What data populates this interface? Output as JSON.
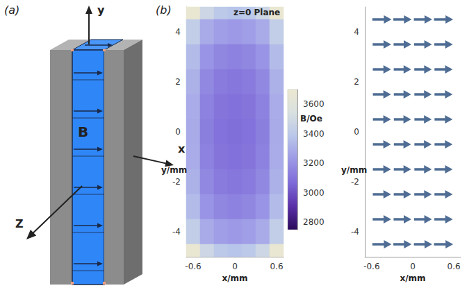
{
  "panel_labels": [
    "(a)",
    "(b)"
  ],
  "diagram": {
    "type": "diagram",
    "axis_labels": [
      "x",
      "y",
      "Z"
    ],
    "field_label": "B"
  },
  "chart_data": [
    {
      "type": "heatmap",
      "annotation": "z=0 Plane",
      "xlabel": "x/mm",
      "ylabel": "y/mm",
      "xlim": [
        -0.7,
        0.7
      ],
      "ylim": [
        -5,
        5
      ],
      "xticks": [
        -0.6,
        0,
        0.6
      ],
      "yticks": [
        -4,
        -2,
        0,
        2,
        4
      ],
      "x": [
        -0.6,
        -0.4,
        -0.2,
        0,
        0.2,
        0.4,
        0.6
      ],
      "y": [
        5,
        4,
        3,
        2,
        1,
        0,
        -1,
        -2,
        -3,
        -4,
        -5
      ],
      "values": [
        [
          3680,
          3480,
          3400,
          3380,
          3400,
          3480,
          3680
        ],
        [
          3430,
          3290,
          3245,
          3230,
          3245,
          3290,
          3430
        ],
        [
          3350,
          3210,
          3165,
          3150,
          3165,
          3210,
          3350
        ],
        [
          3310,
          3170,
          3125,
          3110,
          3125,
          3170,
          3310
        ],
        [
          3295,
          3150,
          3105,
          3090,
          3105,
          3150,
          3295
        ],
        [
          3290,
          3140,
          3095,
          3080,
          3095,
          3140,
          3290
        ],
        [
          3295,
          3150,
          3105,
          3090,
          3105,
          3150,
          3295
        ],
        [
          3310,
          3170,
          3125,
          3110,
          3125,
          3170,
          3310
        ],
        [
          3350,
          3210,
          3165,
          3150,
          3165,
          3210,
          3350
        ],
        [
          3430,
          3290,
          3245,
          3230,
          3245,
          3290,
          3430
        ],
        [
          3680,
          3480,
          3400,
          3380,
          3400,
          3480,
          3680
        ]
      ],
      "colorbar": {
        "title": "B/Oe",
        "range": [
          2750,
          3700
        ],
        "ticks": [
          2800,
          3000,
          3200,
          3400,
          3600
        ]
      },
      "grid": false
    },
    {
      "type": "quiver",
      "xlabel": "x/mm",
      "ylabel": "y/mm",
      "xlim": [
        -0.7,
        0.7
      ],
      "ylim": [
        -5,
        5
      ],
      "xticks": [
        -0.6,
        0,
        0.6
      ],
      "yticks": [
        -4,
        -2,
        0,
        2,
        4
      ],
      "x": [
        -0.45,
        -0.15,
        0.15,
        0.45
      ],
      "y": [
        4.5,
        3.5,
        2.5,
        1.5,
        0.5,
        -0.5,
        -1.5,
        -2.5,
        -3.5,
        -4.5
      ],
      "u": [
        [
          3450,
          3290,
          3290,
          3450
        ],
        [
          3330,
          3200,
          3200,
          3330
        ],
        [
          3280,
          3150,
          3150,
          3280
        ],
        [
          3260,
          3120,
          3120,
          3260
        ],
        [
          3250,
          3100,
          3100,
          3250
        ],
        [
          3250,
          3100,
          3100,
          3250
        ],
        [
          3260,
          3120,
          3120,
          3260
        ],
        [
          3280,
          3150,
          3150,
          3280
        ],
        [
          3330,
          3200,
          3200,
          3330
        ],
        [
          3450,
          3290,
          3290,
          3450
        ]
      ],
      "v": [
        [
          0,
          0,
          0,
          0
        ],
        [
          0,
          0,
          0,
          0
        ],
        [
          0,
          0,
          0,
          0
        ],
        [
          0,
          0,
          0,
          0
        ],
        [
          0,
          0,
          0,
          0
        ],
        [
          0,
          0,
          0,
          0
        ],
        [
          0,
          0,
          0,
          0
        ],
        [
          0,
          0,
          0,
          0
        ],
        [
          0,
          0,
          0,
          0
        ],
        [
          0,
          0,
          0,
          0
        ]
      ],
      "color": "#4f6d94",
      "grid": false
    }
  ]
}
